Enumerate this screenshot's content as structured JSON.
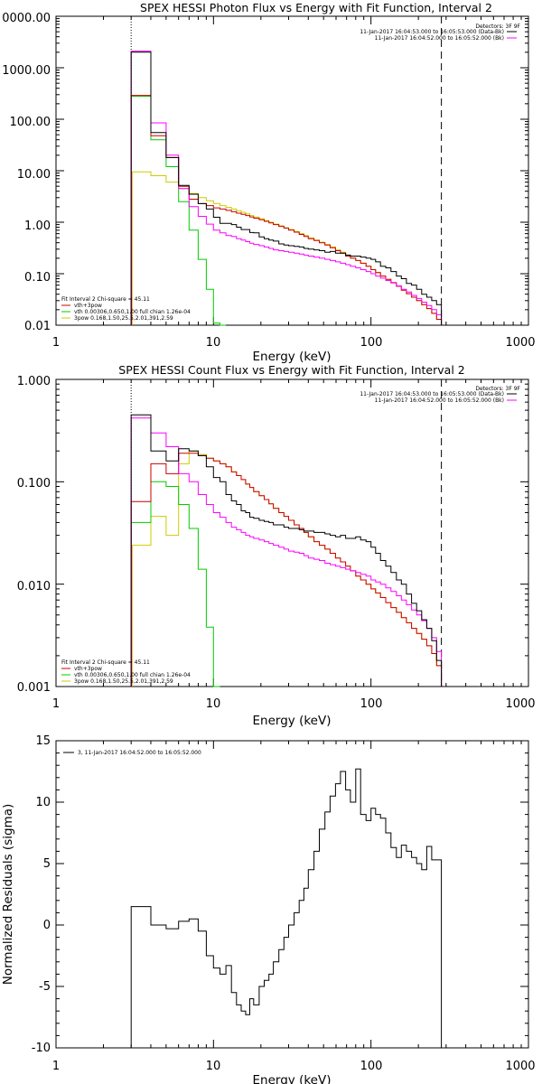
{
  "colors": {
    "data": "#000000",
    "vth_3pow": "#ff00ff",
    "vth": "#00cc00",
    "3pow": "#cccc00",
    "combined_model": "#cc0000",
    "threshold": "#ff8c00"
  },
  "chart_data": [
    {
      "type": "line",
      "title": "SPEX HESSI Photon Flux vs Energy with Fit Function, Interval 2",
      "xlabel": "Energy (keV)",
      "ylabel": "",
      "xscale": "log",
      "yscale": "log",
      "xlim": [
        1,
        1000
      ],
      "ylim": [
        0.01,
        10000
      ],
      "x_ticks": [
        "1",
        "10",
        "100",
        "1000"
      ],
      "y_ticks": [
        "0.01",
        "0.10",
        "1.00",
        "10.00",
        "100.00",
        "1000.00",
        "0000.00"
      ],
      "detectors_label": "Detectors: 3F 9F",
      "legend_right": [
        {
          "text": "11-Jan-2017 16:04:53.000 to 16:05:53.000 (Data-Bk)",
          "color": "#000000"
        },
        {
          "text": "11-Jan-2017 16:04:52.000 to 16:05:52.000 (Bk)",
          "color": "#ff00ff"
        }
      ],
      "fit_header": "Fit Interval 2   Chi-square = 45.11",
      "legend_left": [
        {
          "text": "vth+3pow",
          "color": "#cc0000"
        },
        {
          "text": "vth 0.00306,0.650,1.00  full chian 1.26e-04",
          "color": "#00cc00"
        },
        {
          "text": "3pow 0.168,1.50,25.5,2.01,391,2.59",
          "color": "#cccc00"
        }
      ],
      "vline_dotted": 3,
      "vline_dashed": 280,
      "edges": [
        3,
        4,
        5,
        6,
        7,
        8,
        9,
        10,
        11,
        12,
        13,
        14,
        15,
        16,
        17,
        18,
        19.5,
        21,
        22.5,
        24,
        26,
        28,
        30,
        32.5,
        35,
        37.5,
        40,
        43.5,
        47,
        51,
        55,
        59.5,
        64,
        69,
        74,
        80,
        86,
        93,
        100,
        107,
        115,
        124,
        134,
        145,
        156,
        168,
        181,
        195,
        210,
        226,
        243,
        261,
        280
      ],
      "series": [
        {
          "name": "",
          "color": "#000000",
          "values": [
            2000,
            55,
            18,
            5.2,
            3.5,
            2.3,
            1.8,
            1.25,
            0.95,
            0.95,
            0.9,
            0.8,
            0.72,
            0.72,
            0.63,
            0.62,
            0.52,
            0.48,
            0.45,
            0.43,
            0.38,
            0.36,
            0.35,
            0.34,
            0.33,
            0.31,
            0.3,
            0.29,
            0.28,
            0.26,
            0.27,
            0.25,
            0.25,
            0.23,
            0.22,
            0.22,
            0.21,
            0.2,
            0.19,
            0.17,
            0.14,
            0.13,
            0.11,
            0.09,
            0.08,
            0.065,
            0.06,
            0.05,
            0.04,
            0.035,
            0.03,
            0.025
          ]
        },
        {
          "name": "",
          "color": "#ff00ff",
          "values": [
            2100,
            85,
            20,
            4.5,
            2.0,
            1.3,
            0.92,
            0.7,
            0.62,
            0.55,
            0.53,
            0.48,
            0.45,
            0.42,
            0.39,
            0.37,
            0.35,
            0.33,
            0.31,
            0.29,
            0.28,
            0.27,
            0.26,
            0.25,
            0.24,
            0.23,
            0.22,
            0.21,
            0.2,
            0.19,
            0.18,
            0.17,
            0.16,
            0.15,
            0.14,
            0.13,
            0.12,
            0.11,
            0.1,
            0.09,
            0.082,
            0.074,
            0.066,
            0.058,
            0.05,
            0.044,
            0.038,
            0.033,
            0.028,
            0.024,
            0.02,
            0.016
          ]
        },
        {
          "name": "",
          "color": "#00cc00",
          "values": [
            280,
            40,
            12,
            2.5,
            0.7,
            0.19,
            0.05,
            0.011,
            0.004
          ]
        },
        {
          "name": "",
          "color": "#cccc00",
          "values": [
            9.5,
            8.0,
            6.0,
            4.5,
            3.6,
            3.0,
            2.6,
            2.3,
            2.1,
            1.95,
            1.8,
            1.68,
            1.56,
            1.45,
            1.35,
            1.26,
            1.17,
            1.08,
            1.0,
            0.92,
            0.85,
            0.78,
            0.72,
            0.66,
            0.6,
            0.55,
            0.5,
            0.45,
            0.41,
            0.37,
            0.33,
            0.29,
            0.26,
            0.23,
            0.2,
            0.18,
            0.16,
            0.14,
            0.12,
            0.105,
            0.09,
            0.078,
            0.067,
            0.057,
            0.048,
            0.041,
            0.035,
            0.03,
            0.025,
            0.021,
            0.017,
            0.013
          ]
        },
        {
          "name": "",
          "color": "#cc0000",
          "values": [
            290,
            48,
            18,
            5.0,
            2.8,
            2.3,
            2.1,
            1.9,
            1.8,
            1.7,
            1.6,
            1.5,
            1.42,
            1.35,
            1.27,
            1.2,
            1.12,
            1.04,
            0.97,
            0.9,
            0.83,
            0.77,
            0.7,
            0.64,
            0.58,
            0.53,
            0.48,
            0.44,
            0.4,
            0.36,
            0.32,
            0.28,
            0.25,
            0.22,
            0.2,
            0.18,
            0.16,
            0.14,
            0.12,
            0.105,
            0.09,
            0.078,
            0.067,
            0.057,
            0.048,
            0.041,
            0.035,
            0.03,
            0.025,
            0.021,
            0.017,
            0.013
          ]
        }
      ]
    },
    {
      "type": "line",
      "title": "SPEX HESSI Count Flux vs Energy with Fit Function, Interval 2",
      "xlabel": "Energy (keV)",
      "ylabel": "",
      "xscale": "log",
      "yscale": "log",
      "xlim": [
        1,
        1000
      ],
      "ylim": [
        0.001,
        1
      ],
      "x_ticks": [
        "1",
        "10",
        "100",
        "1000"
      ],
      "y_ticks": [
        "0.001",
        "0.010",
        "0.100",
        "1.000"
      ],
      "detectors_label": "Detectors: 3F 9F",
      "legend_right": [
        {
          "text": "11-Jan-2017 16:04:53.000 to 16:05:53.000 (Data-Bk)",
          "color": "#000000"
        },
        {
          "text": "11-Jan-2017 16:04:52.000 to 16:05:52.000 (Bk)",
          "color": "#ff00ff"
        }
      ],
      "fit_header": "Fit Interval 2   Chi-square = 45.11",
      "legend_left": [
        {
          "text": "vth+3pow",
          "color": "#cc0000"
        },
        {
          "text": "vth 0.00306,0.650,1.00  full chian 1.26e-04",
          "color": "#00cc00"
        },
        {
          "text": "3pow 0.168,1.50,25.5,2.01,391,2.59",
          "color": "#cccc00"
        }
      ],
      "vline_dotted": 3,
      "vline_dashed": 280,
      "edges": [
        3,
        4,
        5,
        6,
        7,
        8,
        9,
        10,
        11,
        12,
        13,
        14,
        15,
        16,
        17,
        18,
        19.5,
        21,
        22.5,
        24,
        26,
        28,
        30,
        32.5,
        35,
        37.5,
        40,
        43.5,
        47,
        51,
        55,
        59.5,
        64,
        69,
        74,
        80,
        86,
        93,
        100,
        107,
        115,
        124,
        134,
        145,
        156,
        168,
        181,
        195,
        210,
        226,
        243,
        261,
        280
      ],
      "series": [
        {
          "name": "",
          "color": "#000000",
          "values": [
            0.45,
            0.2,
            0.16,
            0.21,
            0.2,
            0.18,
            0.14,
            0.11,
            0.1,
            0.075,
            0.065,
            0.06,
            0.052,
            0.05,
            0.045,
            0.044,
            0.042,
            0.041,
            0.04,
            0.038,
            0.038,
            0.036,
            0.035,
            0.035,
            0.034,
            0.033,
            0.033,
            0.032,
            0.032,
            0.031,
            0.03,
            0.029,
            0.03,
            0.028,
            0.028,
            0.029,
            0.027,
            0.026,
            0.023,
            0.02,
            0.017,
            0.015,
            0.013,
            0.011,
            0.01,
            0.008,
            0.0065,
            0.0055,
            0.0045,
            0.0037,
            0.0028,
            0.0018
          ]
        },
        {
          "name": "",
          "color": "#ff00ff",
          "values": [
            0.42,
            0.3,
            0.22,
            0.12,
            0.1,
            0.075,
            0.06,
            0.05,
            0.045,
            0.04,
            0.036,
            0.034,
            0.032,
            0.03,
            0.029,
            0.028,
            0.027,
            0.026,
            0.025,
            0.024,
            0.023,
            0.022,
            0.021,
            0.0205,
            0.02,
            0.019,
            0.018,
            0.0175,
            0.017,
            0.016,
            0.0155,
            0.015,
            0.0145,
            0.014,
            0.0135,
            0.013,
            0.0125,
            0.012,
            0.011,
            0.0105,
            0.01,
            0.0092,
            0.0085,
            0.0077,
            0.007,
            0.0063,
            0.0056,
            0.005,
            0.0044,
            0.0037,
            0.003,
            0.0022
          ]
        },
        {
          "name": "",
          "color": "#00cc00",
          "values": [
            0.04,
            0.1,
            0.09,
            0.06,
            0.035,
            0.014,
            0.0038,
            0.0009
          ]
        },
        {
          "name": "",
          "color": "#cccc00",
          "values": [
            0.024,
            0.046,
            0.03,
            0.15,
            0.2,
            0.185,
            0.17,
            0.16,
            0.15,
            0.14,
            0.125,
            0.115,
            0.105,
            0.095,
            0.088,
            0.08,
            0.073,
            0.067,
            0.061,
            0.055,
            0.05,
            0.046,
            0.042,
            0.038,
            0.035,
            0.032,
            0.029,
            0.026,
            0.024,
            0.022,
            0.02,
            0.018,
            0.0165,
            0.015,
            0.0135,
            0.012,
            0.011,
            0.01,
            0.009,
            0.0082,
            0.0074,
            0.0066,
            0.0059,
            0.0053,
            0.0047,
            0.0042,
            0.0037,
            0.0033,
            0.0029,
            0.0025,
            0.0021,
            0.0016
          ]
        },
        {
          "name": "",
          "color": "#cc0000",
          "values": [
            0.064,
            0.15,
            0.12,
            0.19,
            0.19,
            0.18,
            0.17,
            0.16,
            0.15,
            0.14,
            0.125,
            0.115,
            0.105,
            0.095,
            0.088,
            0.08,
            0.073,
            0.067,
            0.061,
            0.055,
            0.05,
            0.046,
            0.042,
            0.038,
            0.035,
            0.032,
            0.029,
            0.026,
            0.024,
            0.022,
            0.02,
            0.018,
            0.0165,
            0.015,
            0.0135,
            0.012,
            0.011,
            0.01,
            0.009,
            0.0082,
            0.0074,
            0.0066,
            0.0059,
            0.0053,
            0.0047,
            0.0042,
            0.0037,
            0.0033,
            0.0029,
            0.0025,
            0.0021,
            0.0016
          ]
        }
      ]
    },
    {
      "type": "line",
      "title": "",
      "xlabel": "Energy (keV)",
      "ylabel": "Normalized Residuals (sigma)",
      "xscale": "log",
      "yscale": "linear",
      "xlim": [
        1,
        1000
      ],
      "ylim": [
        -10,
        15
      ],
      "x_ticks": [
        "1",
        "10",
        "100",
        "1000"
      ],
      "y_ticks": [
        "-10",
        "-5",
        "0",
        "5",
        "10",
        "15"
      ],
      "legend_left": [
        {
          "text": "3, 11-Jan-2017 16:04:52.000 to 16:05:52.000",
          "color": "#000000"
        }
      ],
      "edges": [
        3,
        4,
        5,
        6,
        7,
        8,
        9,
        10,
        11,
        12,
        13,
        14,
        15,
        16,
        17,
        18,
        19.5,
        21,
        22.5,
        24,
        26,
        28,
        30,
        32.5,
        35,
        37.5,
        40,
        43.5,
        47,
        51,
        55,
        59.5,
        64,
        69,
        74,
        80,
        86,
        93,
        100,
        107,
        115,
        124,
        134,
        145,
        156,
        168,
        181,
        195,
        210,
        226,
        243,
        261,
        280
      ],
      "series": [
        {
          "name": "",
          "color": "#000000",
          "values": [
            1.5,
            0.0,
            -0.3,
            0.3,
            0.5,
            -0.5,
            -2.5,
            -3.5,
            -4.0,
            -3.3,
            -5.5,
            -6.5,
            -7.0,
            -7.3,
            -6.0,
            -6.5,
            -5.0,
            -4.5,
            -4.0,
            -3.0,
            -2.0,
            -1.0,
            0.0,
            1.0,
            2.0,
            3.0,
            4.5,
            6.0,
            7.8,
            9.2,
            10.5,
            11.5,
            12.5,
            11.0,
            10.0,
            12.7,
            9.0,
            8.5,
            9.5,
            9.0,
            8.7,
            7.5,
            6.3,
            5.5,
            6.5,
            6.0,
            5.5,
            5.0,
            4.5,
            6.4,
            5.3,
            5.3
          ]
        }
      ]
    }
  ]
}
